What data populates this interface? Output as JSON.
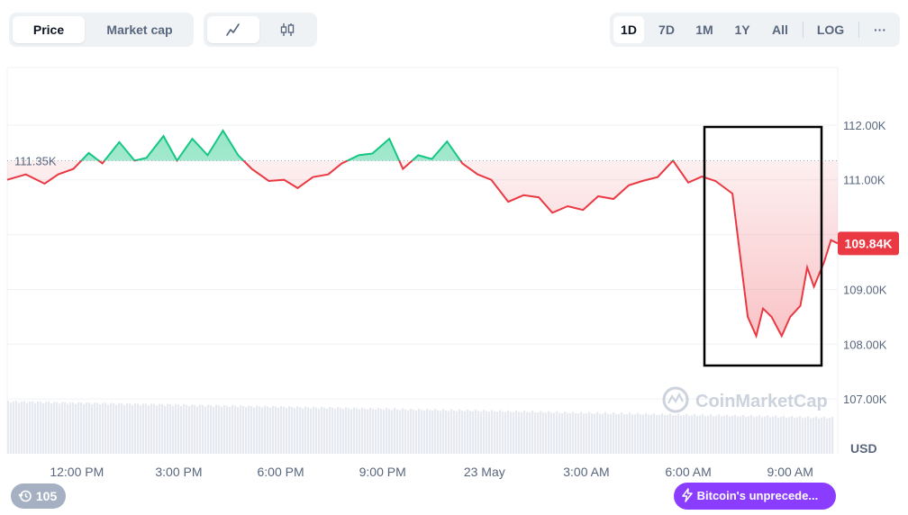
{
  "toolbar": {
    "metric_tabs": [
      {
        "label": "Price",
        "active": true
      },
      {
        "label": "Market cap",
        "active": false
      }
    ],
    "chart_type_icons": [
      "line-chart-icon",
      "candlestick-icon"
    ],
    "ranges": [
      {
        "label": "1D",
        "active": true
      },
      {
        "label": "7D",
        "active": false
      },
      {
        "label": "1M",
        "active": false
      },
      {
        "label": "1Y",
        "active": false
      },
      {
        "label": "All",
        "active": false
      }
    ],
    "log_label": "LOG",
    "more_label": "···"
  },
  "chart_data": {
    "type": "area",
    "baseline": 111.35,
    "baseline_label": "111.35K",
    "current_label": "109.84K",
    "y_ticks": [
      {
        "v": 112,
        "label": "112.00K"
      },
      {
        "v": 111,
        "label": "111.00K"
      },
      {
        "v": 109,
        "label": "109.00K"
      },
      {
        "v": 108,
        "label": "108.00K"
      },
      {
        "v": 107,
        "label": "107.00K"
      }
    ],
    "ylim": [
      106.0,
      113.05
    ],
    "y_unit": "USD",
    "x_ticks": [
      "12:00 PM",
      "3:00 PM",
      "6:00 PM",
      "9:00 PM",
      "23 May",
      "3:00 AM",
      "6:00 AM",
      "9:00 AM"
    ],
    "series": [
      {
        "x": [
          0,
          0.55,
          1.1,
          1.5,
          1.95,
          2.4,
          2.8,
          3.3,
          3.75,
          4.1,
          4.6,
          5.0,
          5.45,
          5.9,
          6.35,
          6.8,
          7.2,
          7.7,
          8.15,
          8.55,
          9.0,
          9.45,
          9.85,
          10.35,
          10.75,
          11.25,
          11.65,
          12.1,
          12.5,
          12.95,
          13.4,
          13.85,
          14.25,
          14.75,
          15.2,
          15.65,
          16.05,
          16.5,
          16.95,
          17.4,
          17.85,
          18.3,
          18.7,
          19.15,
          19.6,
          20.05,
          20.45,
          20.85,
          21.35,
          21.6,
          21.8,
          22.05,
          22.25,
          22.5,
          22.8,
          23.05,
          23.35,
          23.55,
          23.75,
          24.05,
          24.25,
          24.45
        ],
        "y": [
          111.0,
          111.1,
          110.93,
          111.1,
          111.2,
          111.49,
          111.3,
          111.69,
          111.35,
          111.4,
          111.8,
          111.35,
          111.75,
          111.45,
          111.9,
          111.45,
          111.2,
          110.98,
          111.0,
          110.85,
          111.05,
          111.1,
          111.3,
          111.45,
          111.48,
          111.75,
          111.2,
          111.45,
          111.38,
          111.7,
          111.3,
          111.1,
          111.0,
          110.6,
          110.72,
          110.68,
          110.4,
          110.52,
          110.45,
          110.7,
          110.65,
          110.9,
          110.98,
          111.05,
          111.35,
          110.95,
          111.06,
          110.98,
          110.75,
          109.5,
          108.5,
          108.15,
          108.65,
          108.5,
          108.15,
          108.5,
          108.7,
          109.4,
          109.05,
          109.5,
          109.9,
          109.84
        ]
      }
    ]
  },
  "watermark": "CoinMarketCap",
  "history_badge": "105",
  "news_badge": "Bitcoin's unprecede..."
}
